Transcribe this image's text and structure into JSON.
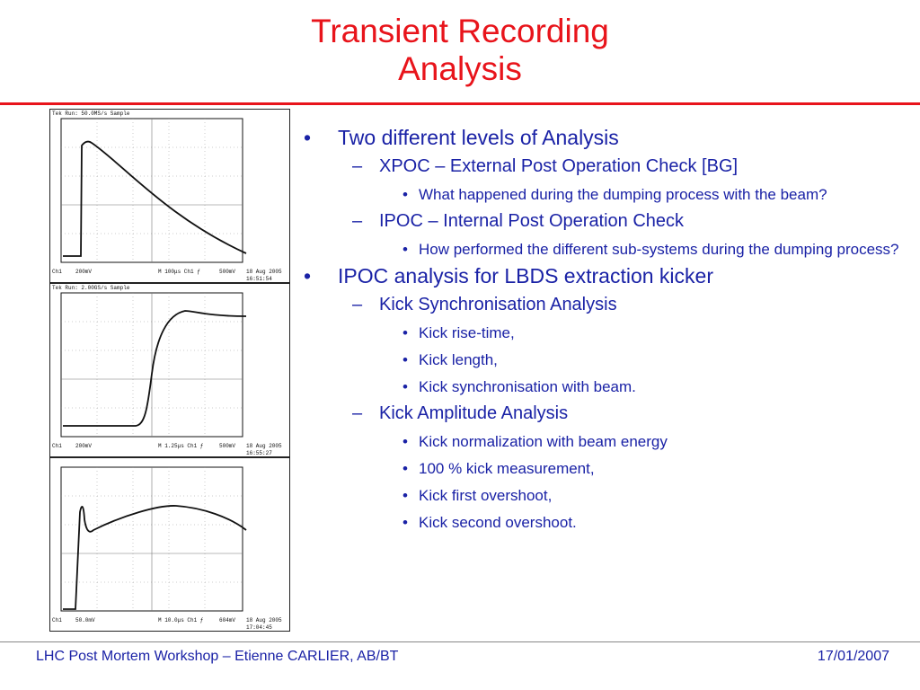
{
  "title": {
    "line1": "Transient Recording",
    "line2": "Analysis"
  },
  "scopes": [
    {
      "header": "Tek Run: 50.0MS/s     Sample",
      "ch": "Ch1",
      "volts": "200mV",
      "time": "M 100μs  Ch1 ƒ",
      "trig": "500mV",
      "date": "18 Aug 2005",
      "clock": "16:51:54"
    },
    {
      "header": "Tek Run: 2.00GS/s     Sample",
      "ch": "Ch1",
      "volts": "200mV",
      "time": "M 1.25μs  Ch1 ƒ",
      "trig": "500mV",
      "date": "18 Aug 2005",
      "clock": "16:55:27"
    },
    {
      "header": "",
      "ch": "Ch1",
      "volts": "50.0mV",
      "time": "M 10.0μs  Ch1 ƒ",
      "trig": "604mV",
      "date": "18 Aug 2005",
      "clock": "17:04:45"
    }
  ],
  "bullets": [
    {
      "level": 1,
      "marker": "•",
      "text": "Two different levels of Analysis"
    },
    {
      "level": 2,
      "marker": "–",
      "text": "XPOC – External Post Operation Check [BG]"
    },
    {
      "level": 3,
      "marker": "•",
      "text": "What happened during the dumping process with the beam?"
    },
    {
      "level": 2,
      "marker": "–",
      "text": "IPOC – Internal Post Operation Check"
    },
    {
      "level": 3,
      "marker": "•",
      "text": "How performed the different sub-systems during the dumping process?"
    },
    {
      "level": 1,
      "marker": "•",
      "text": "IPOC analysis for LBDS extraction kicker"
    },
    {
      "level": 2,
      "marker": "–",
      "text": "Kick Synchronisation Analysis"
    },
    {
      "level": 3,
      "marker": "•",
      "text": "Kick rise-time,"
    },
    {
      "level": 3,
      "marker": "•",
      "text": "Kick length,"
    },
    {
      "level": 3,
      "marker": "•",
      "text": "Kick synchronisation with beam."
    },
    {
      "level": 2,
      "marker": "–",
      "text": "Kick Amplitude Analysis"
    },
    {
      "level": 3,
      "marker": "•",
      "text": "Kick normalization with beam energy"
    },
    {
      "level": 3,
      "marker": "•",
      "text": "100 % kick measurement,"
    },
    {
      "level": 3,
      "marker": "•",
      "text": "Kick first overshoot,"
    },
    {
      "level": 3,
      "marker": "•",
      "text": "Kick second overshoot."
    }
  ],
  "footer": {
    "left": "LHC Post Mortem Workshop – Etienne CARLIER, AB/BT",
    "right": "17/01/2007"
  },
  "colors": {
    "accent": "#e8141b",
    "text": "#1a22a6"
  }
}
